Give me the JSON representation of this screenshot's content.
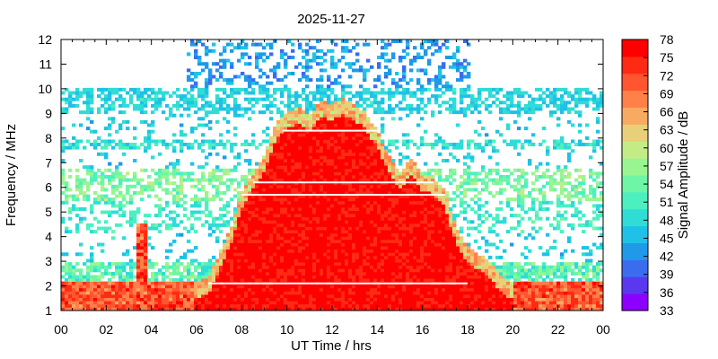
{
  "chart_data": {
    "type": "heatmap",
    "title": "2025-11-27",
    "xlabel": "UT Time / hrs",
    "ylabel": "Frequency / MHz",
    "colorbar_label": "Signal Amplitude / dB",
    "xlim": [
      0,
      24
    ],
    "ylim": [
      1,
      12
    ],
    "x_ticks": [
      "00",
      "02",
      "04",
      "06",
      "08",
      "10",
      "12",
      "14",
      "16",
      "18",
      "20",
      "22",
      "00"
    ],
    "y_ticks": [
      "1",
      "2",
      "3",
      "4",
      "5",
      "6",
      "7",
      "8",
      "9",
      "10",
      "11",
      "12"
    ],
    "colorbar_ticks": [
      "33",
      "36",
      "39",
      "42",
      "45",
      "48",
      "51",
      "54",
      "57",
      "60",
      "63",
      "66",
      "69",
      "72",
      "75",
      "78"
    ],
    "color_range": [
      33,
      78
    ],
    "colors": [
      "#8b00ff",
      "#5a38f0",
      "#3a6cf0",
      "#1f99e8",
      "#1fc2e6",
      "#2fdcd6",
      "#4cf0c0",
      "#6ef5a6",
      "#99f590",
      "#c4ec86",
      "#e8cf79",
      "#f8a962",
      "#ff8049",
      "#ff5530",
      "#ff2a14",
      "#ff0000"
    ],
    "region_amplitudes_db": {
      "daytime_absorption_upper_bound_mhz": [
        [
          5.9,
          1.9
        ],
        [
          6.5,
          2.0
        ],
        [
          7.0,
          3.0
        ],
        [
          7.5,
          4.0
        ],
        [
          8.0,
          5.5
        ],
        [
          8.5,
          6.3
        ],
        [
          9.0,
          7.0
        ],
        [
          9.5,
          8.3
        ],
        [
          10.0,
          8.7
        ],
        [
          10.5,
          9.0
        ],
        [
          11.0,
          8.6
        ],
        [
          11.5,
          9.2
        ],
        [
          12.0,
          9.1
        ],
        [
          12.5,
          9.3
        ],
        [
          13.0,
          9.1
        ],
        [
          13.5,
          8.7
        ],
        [
          14.0,
          8.0
        ],
        [
          14.5,
          7.0
        ],
        [
          15.0,
          6.3
        ],
        [
          15.5,
          6.9
        ],
        [
          16.0,
          6.2
        ],
        [
          16.5,
          6.1
        ],
        [
          17.0,
          5.6
        ],
        [
          17.5,
          4.0
        ],
        [
          18.0,
          3.3
        ],
        [
          18.5,
          3.0
        ],
        [
          19.0,
          2.7
        ],
        [
          19.5,
          2.1
        ],
        [
          20.0,
          1.8
        ]
      ],
      "daytime_absorption_db": 78,
      "low_band_night_db": 72,
      "mid_band_db": 51,
      "upper_band_db": 45,
      "spike_time_hrs": 3.6,
      "spike_top_mhz": 4.5
    },
    "gap_lines": [
      {
        "freq_mhz": 2.1,
        "from_hrs": 6.5,
        "to_hrs": 18.0
      },
      {
        "freq_mhz": 5.7,
        "from_hrs": 8.0,
        "to_hrs": 17.0
      },
      {
        "freq_mhz": 6.2,
        "from_hrs": 8.5,
        "to_hrs": 16.5
      },
      {
        "freq_mhz": 8.3,
        "from_hrs": 9.8,
        "to_hrs": 14.0
      }
    ]
  }
}
